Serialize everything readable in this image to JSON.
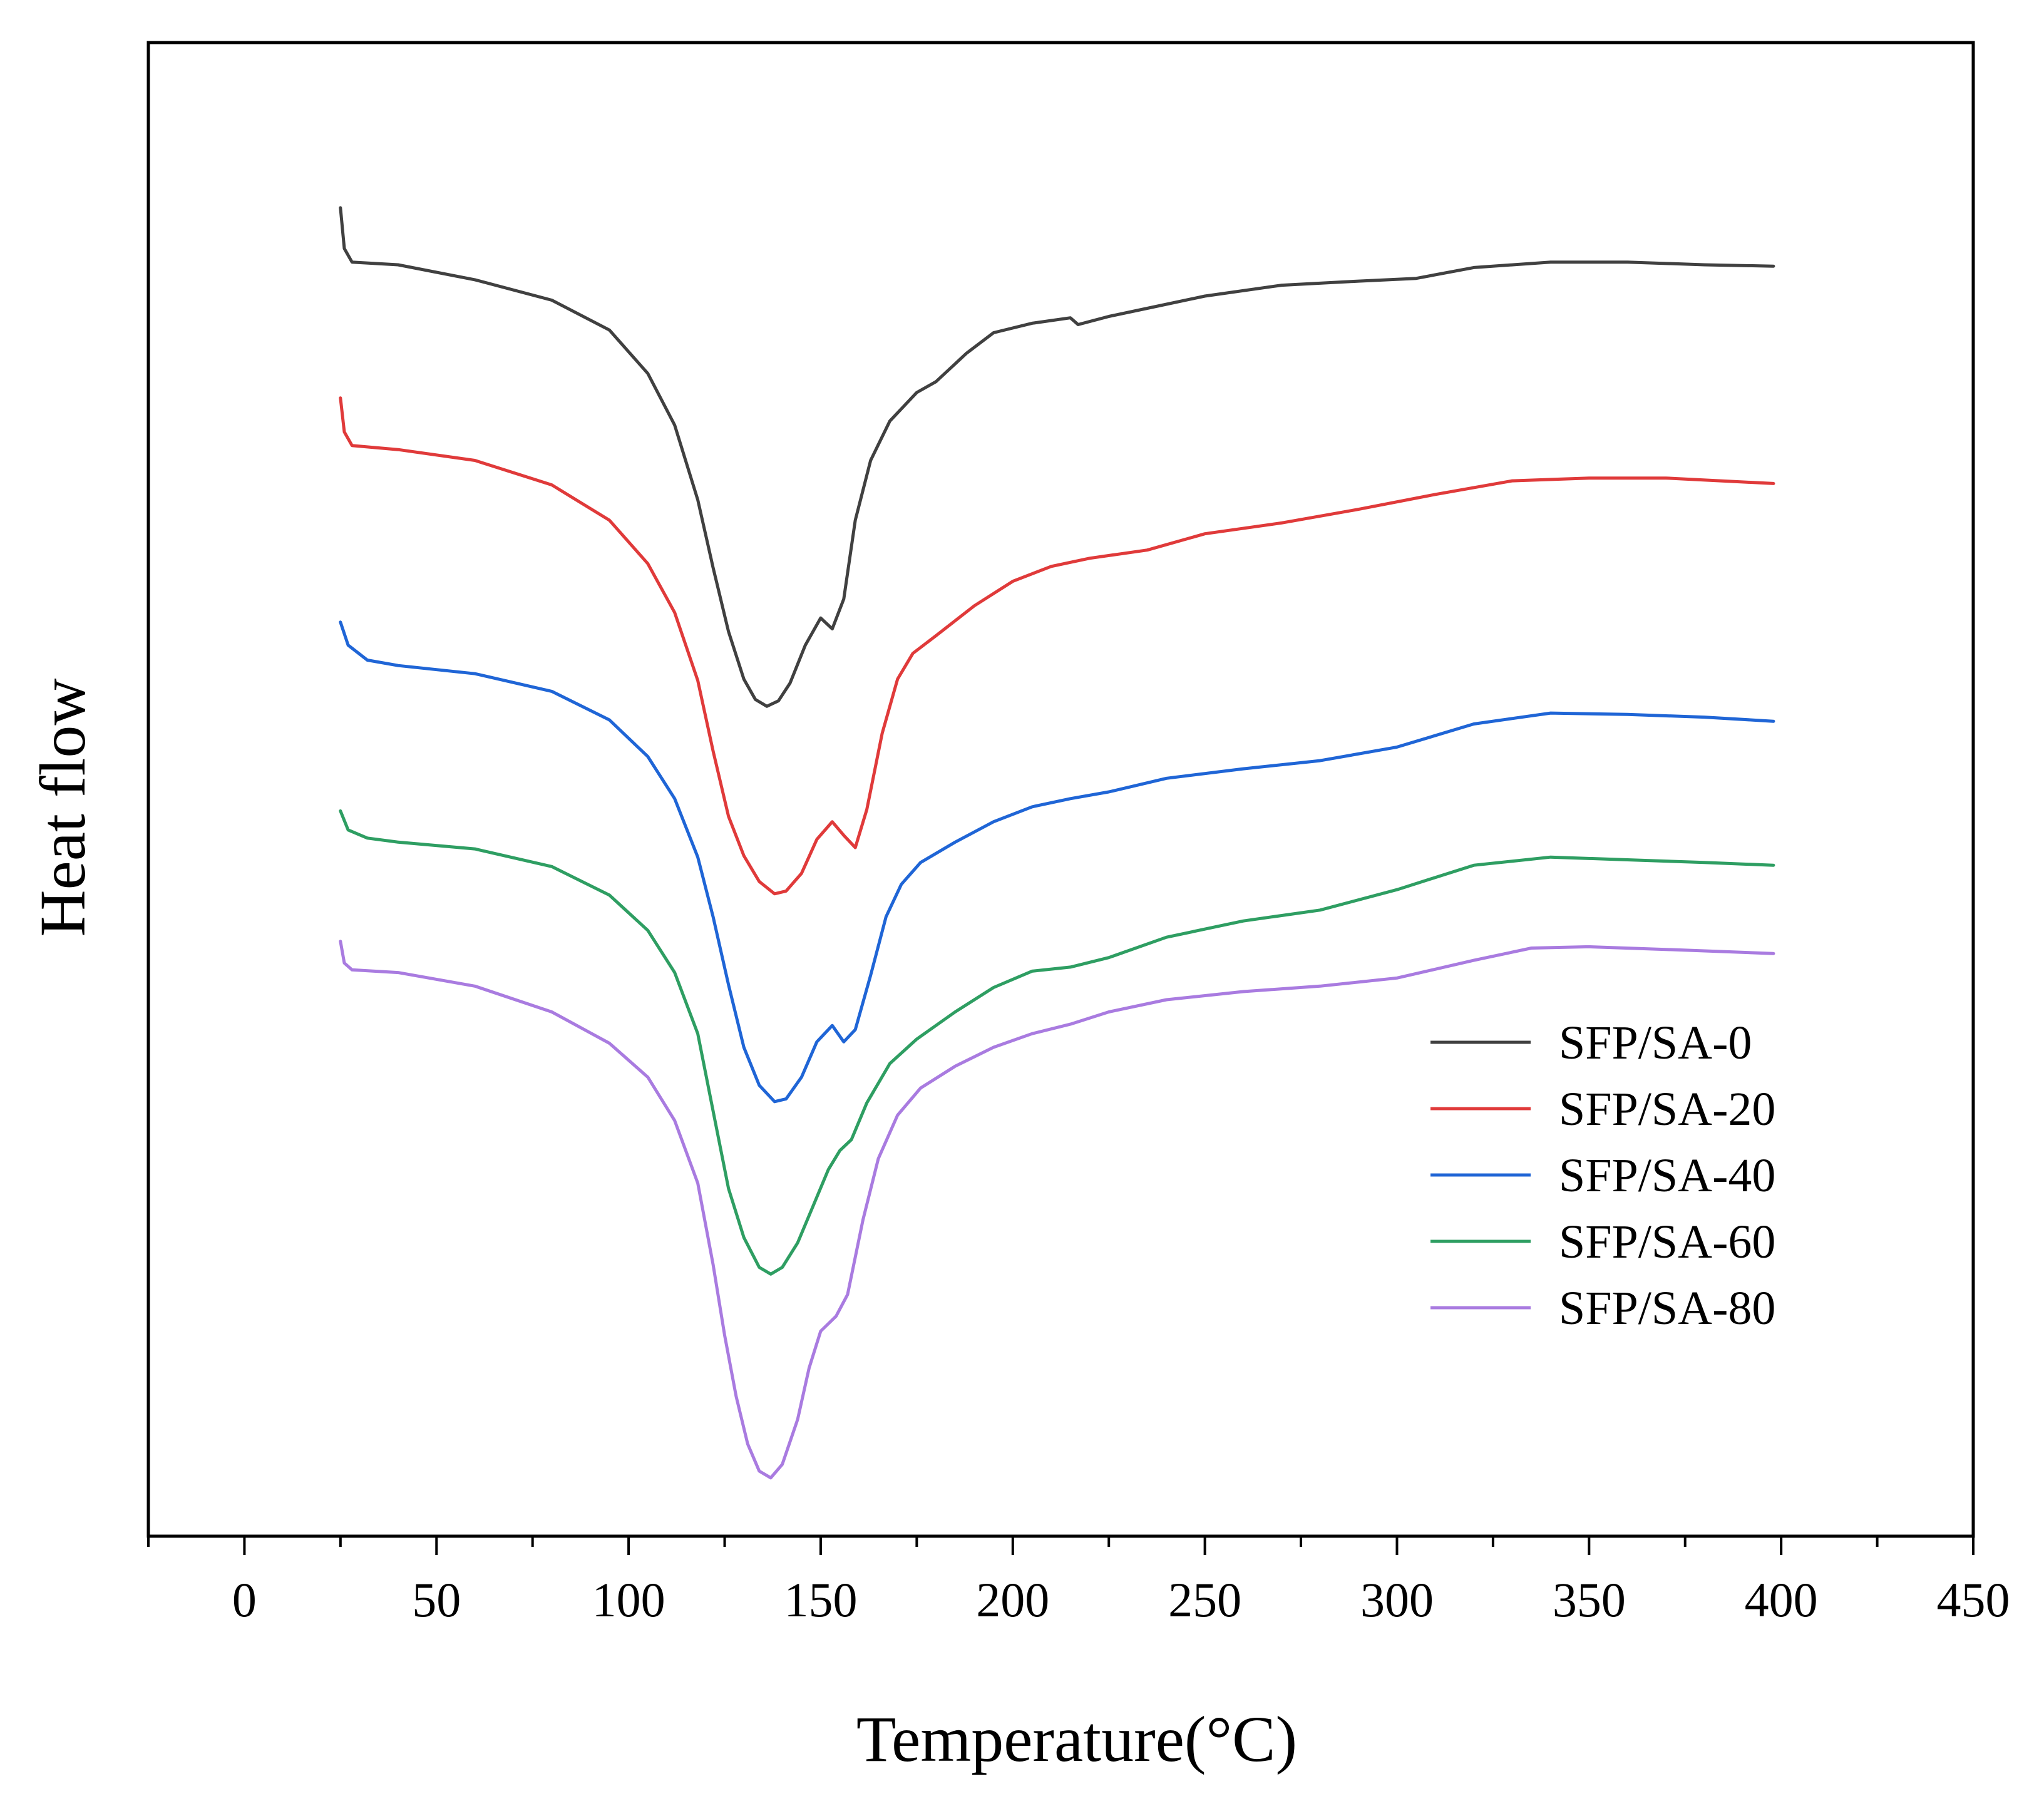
{
  "chart_data": {
    "type": "line",
    "title": "",
    "xlabel": "Temperature(°C)",
    "ylabel": "Heat flow",
    "xlim": [
      -25,
      450
    ],
    "ylim": [
      0,
      1
    ],
    "xticks": [
      0,
      50,
      100,
      150,
      200,
      250,
      300,
      350,
      400,
      450
    ],
    "x_tick_labels": [
      "0",
      "50",
      "100",
      "150",
      "200",
      "250",
      "300",
      "350",
      "400",
      "450"
    ],
    "y_ticks_visible": false,
    "grid": false,
    "legend_position": "lower-right",
    "series": [
      {
        "name": "SFP/SA-0",
        "color": "#404040",
        "points": [
          [
            25,
            0.93
          ],
          [
            26,
            0.9
          ],
          [
            28,
            0.89
          ],
          [
            40,
            0.888
          ],
          [
            60,
            0.877
          ],
          [
            80,
            0.862
          ],
          [
            95,
            0.84
          ],
          [
            105,
            0.808
          ],
          [
            112,
            0.77
          ],
          [
            118,
            0.715
          ],
          [
            122,
            0.665
          ],
          [
            126,
            0.618
          ],
          [
            130,
            0.583
          ],
          [
            133,
            0.568
          ],
          [
            136,
            0.563
          ],
          [
            139,
            0.567
          ],
          [
            142,
            0.58
          ],
          [
            146,
            0.608
          ],
          [
            150,
            0.628
          ],
          [
            153,
            0.62
          ],
          [
            156,
            0.642
          ],
          [
            159,
            0.7
          ],
          [
            163,
            0.744
          ],
          [
            168,
            0.773
          ],
          [
            175,
            0.794
          ],
          [
            180,
            0.802
          ],
          [
            188,
            0.823
          ],
          [
            195,
            0.838
          ],
          [
            205,
            0.845
          ],
          [
            215,
            0.849
          ],
          [
            217,
            0.844
          ],
          [
            225,
            0.85
          ],
          [
            235,
            0.856
          ],
          [
            250,
            0.865
          ],
          [
            270,
            0.873
          ],
          [
            290,
            0.876
          ],
          [
            305,
            0.878
          ],
          [
            320,
            0.886
          ],
          [
            340,
            0.89
          ],
          [
            360,
            0.89
          ],
          [
            380,
            0.888
          ],
          [
            398,
            0.887
          ]
        ]
      },
      {
        "name": "SFP/SA-20",
        "color": "#e03a3a",
        "points": [
          [
            25,
            0.79
          ],
          [
            26,
            0.765
          ],
          [
            28,
            0.755
          ],
          [
            40,
            0.752
          ],
          [
            60,
            0.744
          ],
          [
            80,
            0.726
          ],
          [
            95,
            0.7
          ],
          [
            105,
            0.668
          ],
          [
            112,
            0.632
          ],
          [
            118,
            0.582
          ],
          [
            122,
            0.53
          ],
          [
            126,
            0.482
          ],
          [
            130,
            0.453
          ],
          [
            134,
            0.434
          ],
          [
            138,
            0.425
          ],
          [
            141,
            0.427
          ],
          [
            145,
            0.44
          ],
          [
            149,
            0.465
          ],
          [
            153,
            0.478
          ],
          [
            156,
            0.468
          ],
          [
            159,
            0.459
          ],
          [
            162,
            0.487
          ],
          [
            166,
            0.543
          ],
          [
            170,
            0.583
          ],
          [
            174,
            0.602
          ],
          [
            180,
            0.615
          ],
          [
            190,
            0.637
          ],
          [
            200,
            0.655
          ],
          [
            210,
            0.666
          ],
          [
            220,
            0.672
          ],
          [
            235,
            0.678
          ],
          [
            250,
            0.69
          ],
          [
            270,
            0.698
          ],
          [
            290,
            0.708
          ],
          [
            310,
            0.719
          ],
          [
            330,
            0.729
          ],
          [
            350,
            0.731
          ],
          [
            370,
            0.731
          ],
          [
            398,
            0.727
          ]
        ]
      },
      {
        "name": "SFP/SA-40",
        "color": "#1f65d6",
        "points": [
          [
            25,
            0.625
          ],
          [
            27,
            0.608
          ],
          [
            32,
            0.597
          ],
          [
            40,
            0.593
          ],
          [
            60,
            0.587
          ],
          [
            80,
            0.574
          ],
          [
            95,
            0.553
          ],
          [
            105,
            0.526
          ],
          [
            112,
            0.495
          ],
          [
            118,
            0.452
          ],
          [
            122,
            0.408
          ],
          [
            126,
            0.358
          ],
          [
            130,
            0.312
          ],
          [
            134,
            0.284
          ],
          [
            138,
            0.272
          ],
          [
            141,
            0.274
          ],
          [
            145,
            0.29
          ],
          [
            149,
            0.316
          ],
          [
            153,
            0.328
          ],
          [
            156,
            0.316
          ],
          [
            159,
            0.325
          ],
          [
            163,
            0.365
          ],
          [
            167,
            0.408
          ],
          [
            171,
            0.432
          ],
          [
            176,
            0.448
          ],
          [
            185,
            0.463
          ],
          [
            195,
            0.478
          ],
          [
            205,
            0.489
          ],
          [
            215,
            0.495
          ],
          [
            225,
            0.5
          ],
          [
            240,
            0.51
          ],
          [
            260,
            0.517
          ],
          [
            280,
            0.523
          ],
          [
            300,
            0.533
          ],
          [
            320,
            0.55
          ],
          [
            340,
            0.558
          ],
          [
            360,
            0.557
          ],
          [
            380,
            0.555
          ],
          [
            398,
            0.552
          ]
        ]
      },
      {
        "name": "SFP/SA-60",
        "color": "#2e9e62",
        "points": [
          [
            25,
            0.486
          ],
          [
            27,
            0.472
          ],
          [
            32,
            0.466
          ],
          [
            40,
            0.463
          ],
          [
            60,
            0.458
          ],
          [
            80,
            0.445
          ],
          [
            95,
            0.424
          ],
          [
            105,
            0.398
          ],
          [
            112,
            0.367
          ],
          [
            118,
            0.322
          ],
          [
            122,
            0.265
          ],
          [
            126,
            0.208
          ],
          [
            130,
            0.172
          ],
          [
            134,
            0.15
          ],
          [
            137,
            0.145
          ],
          [
            140,
            0.15
          ],
          [
            144,
            0.168
          ],
          [
            148,
            0.195
          ],
          [
            152,
            0.222
          ],
          [
            155,
            0.236
          ],
          [
            158,
            0.244
          ],
          [
            162,
            0.271
          ],
          [
            168,
            0.3
          ],
          [
            175,
            0.318
          ],
          [
            185,
            0.338
          ],
          [
            195,
            0.356
          ],
          [
            205,
            0.368
          ],
          [
            215,
            0.371
          ],
          [
            225,
            0.378
          ],
          [
            240,
            0.393
          ],
          [
            260,
            0.405
          ],
          [
            280,
            0.413
          ],
          [
            300,
            0.428
          ],
          [
            320,
            0.446
          ],
          [
            340,
            0.452
          ],
          [
            360,
            0.45
          ],
          [
            380,
            0.448
          ],
          [
            398,
            0.446
          ]
        ]
      },
      {
        "name": "SFP/SA-80",
        "color": "#a97be0",
        "points": [
          [
            25,
            0.39
          ],
          [
            26,
            0.374
          ],
          [
            28,
            0.369
          ],
          [
            40,
            0.367
          ],
          [
            60,
            0.357
          ],
          [
            80,
            0.338
          ],
          [
            95,
            0.315
          ],
          [
            105,
            0.29
          ],
          [
            112,
            0.258
          ],
          [
            118,
            0.212
          ],
          [
            122,
            0.152
          ],
          [
            125,
            0.1
          ],
          [
            128,
            0.055
          ],
          [
            131,
            0.02
          ],
          [
            134,
            0.0
          ],
          [
            137,
            -0.005
          ],
          [
            140,
            0.005
          ],
          [
            144,
            0.038
          ],
          [
            147,
            0.076
          ],
          [
            150,
            0.103
          ],
          [
            154,
            0.114
          ],
          [
            157,
            0.13
          ],
          [
            161,
            0.185
          ],
          [
            165,
            0.23
          ],
          [
            170,
            0.262
          ],
          [
            176,
            0.282
          ],
          [
            185,
            0.298
          ],
          [
            195,
            0.312
          ],
          [
            205,
            0.322
          ],
          [
            215,
            0.329
          ],
          [
            225,
            0.338
          ],
          [
            240,
            0.347
          ],
          [
            260,
            0.353
          ],
          [
            280,
            0.357
          ],
          [
            300,
            0.363
          ],
          [
            320,
            0.376
          ],
          [
            335,
            0.385
          ],
          [
            350,
            0.386
          ],
          [
            370,
            0.384
          ],
          [
            398,
            0.381
          ]
        ]
      }
    ]
  }
}
